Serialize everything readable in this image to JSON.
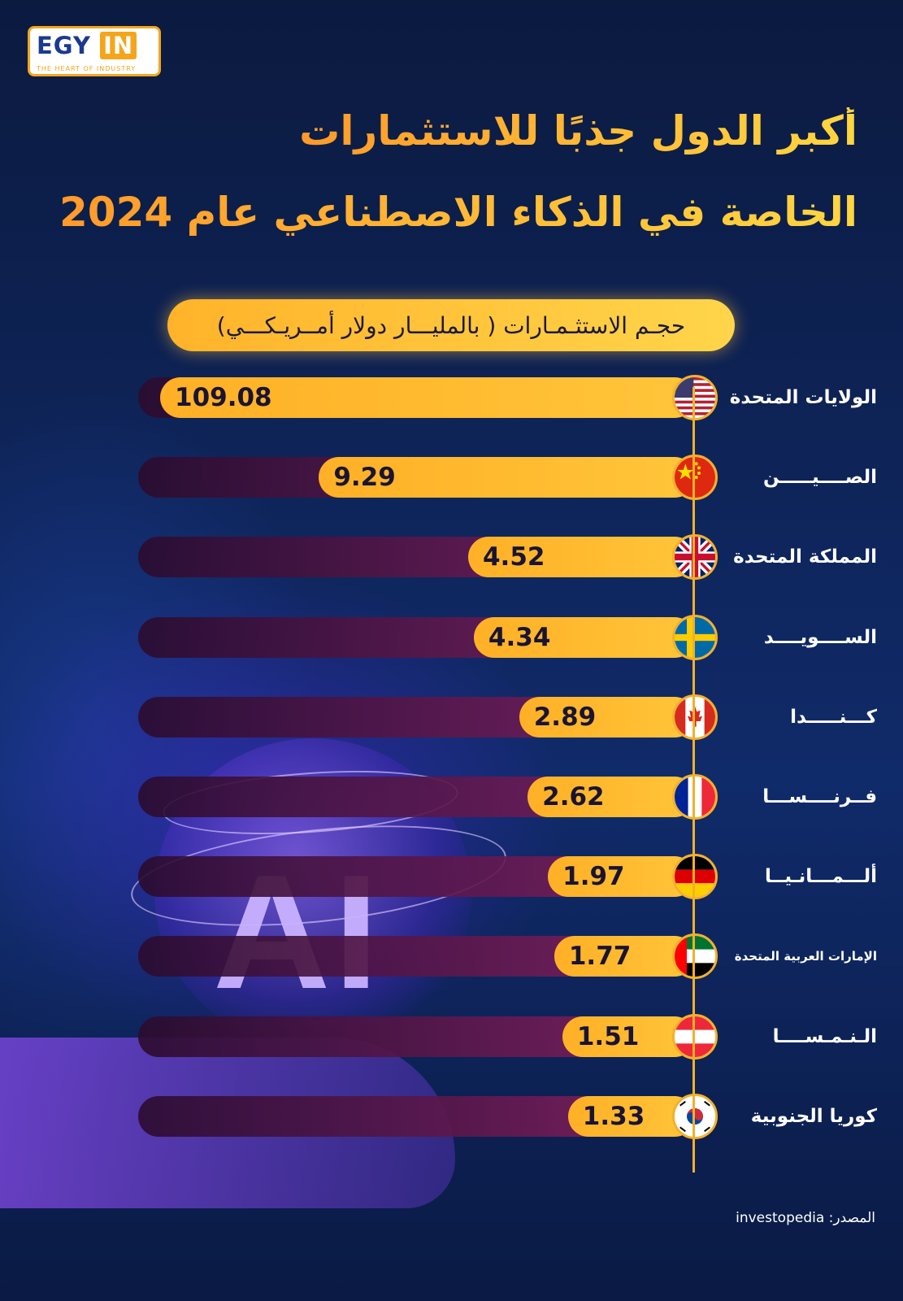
{
  "logo": {
    "main_left": "EGY",
    "main_box": "IN",
    "tagline": "THE HEART OF INDUSTRY"
  },
  "title": {
    "line1": "أكبر الدول جذبًا للاستثمارات",
    "line2": "الخاصة في الذكاء الاصطناعي عام 2024"
  },
  "subtitle": "حجـم الاستثـمـارات ( بالمليـــار دولار أمــريـكـــي)",
  "source": "المصدر: investopedia",
  "colors": {
    "accent": "#ffb026",
    "track": "#6a1a52",
    "background": "#0e2458"
  },
  "chart_data": {
    "type": "bar",
    "orientation": "horizontal",
    "title": "أكبر الدول جذبًا للاستثمارات الخاصة في الذكاء الاصطناعي عام 2024",
    "unit_label": "حجـم الاستثـمـارات ( بالمليـــار دولار أمــريـكـــي)",
    "categories": [
      "الولايات المتحدة",
      "الصــــيـــــن",
      "المملكة المتحدة",
      "الســــويــــد",
      "كـــنـــــدا",
      "فــرنــــســـا",
      "ألـــمـــانـيــا",
      "الإمارات العربية المتحدة",
      "الـنـمـســــا",
      "كوريا الجنوبية"
    ],
    "values": [
      109.08,
      9.29,
      4.52,
      4.34,
      2.89,
      2.62,
      1.97,
      1.77,
      1.51,
      1.33
    ],
    "labels": [
      "109.08",
      "9.29",
      "4.52",
      "4.34",
      "2.89",
      "2.62",
      "1.97",
      "1.77",
      "1.51",
      "1.33"
    ],
    "flags": [
      "us",
      "cn",
      "gb",
      "se",
      "ca",
      "fr",
      "de",
      "ae",
      "at",
      "kr"
    ],
    "grid": false,
    "legend": "none"
  }
}
